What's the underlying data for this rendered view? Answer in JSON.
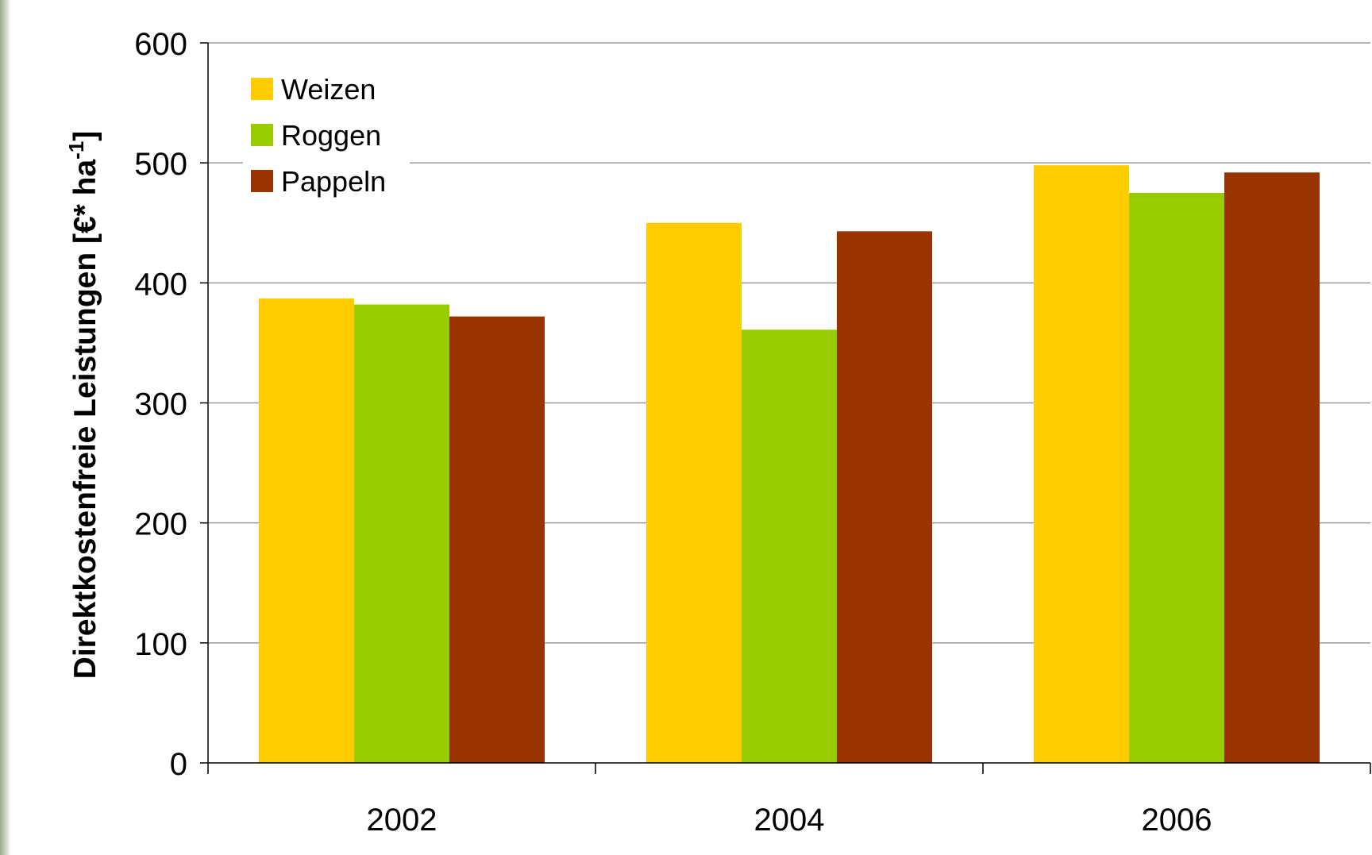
{
  "chart_data": {
    "type": "bar",
    "categories": [
      "2002",
      "2004",
      "2006"
    ],
    "series": [
      {
        "name": "Weizen",
        "color": "#FFCC00",
        "values": [
          387,
          450,
          498
        ]
      },
      {
        "name": "Roggen",
        "color": "#99CC00",
        "values": [
          382,
          361,
          475
        ]
      },
      {
        "name": "Pappeln",
        "color": "#993300",
        "values": [
          372,
          443,
          492
        ]
      }
    ],
    "ylabel": "Direktkostenfreie Leistungen [€* ha",
    "ylabel_sup": "-1",
    "ylabel_close": "]",
    "ylim": [
      0,
      600
    ],
    "yticks": [
      0,
      100,
      200,
      300,
      400,
      500,
      600
    ],
    "grid": true,
    "legend_position": "top-left"
  }
}
